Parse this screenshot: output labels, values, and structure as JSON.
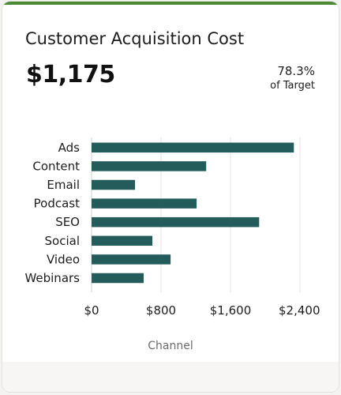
{
  "card": {
    "title": "Customer Acquisition Cost",
    "value": "$1,175",
    "target_pct": "78.3%",
    "target_label": "of Target"
  },
  "colors": {
    "bar": "#245c5c",
    "accent": "#4a8a34",
    "grid": "#e3e3e3"
  },
  "chart_data": {
    "type": "bar",
    "orientation": "horizontal",
    "categories": [
      "Ads",
      "Content",
      "Email",
      "Podcast",
      "SEO",
      "Social",
      "Video",
      "Webinars"
    ],
    "values": [
      2330,
      1320,
      500,
      1210,
      1930,
      700,
      910,
      600
    ],
    "xlim": [
      0,
      2400
    ],
    "xticks": [
      0,
      800,
      1600,
      2400
    ],
    "xtick_labels": [
      "$0",
      "$800",
      "$1,600",
      "$2,400"
    ],
    "xlabel": "Channel",
    "grid": true
  }
}
